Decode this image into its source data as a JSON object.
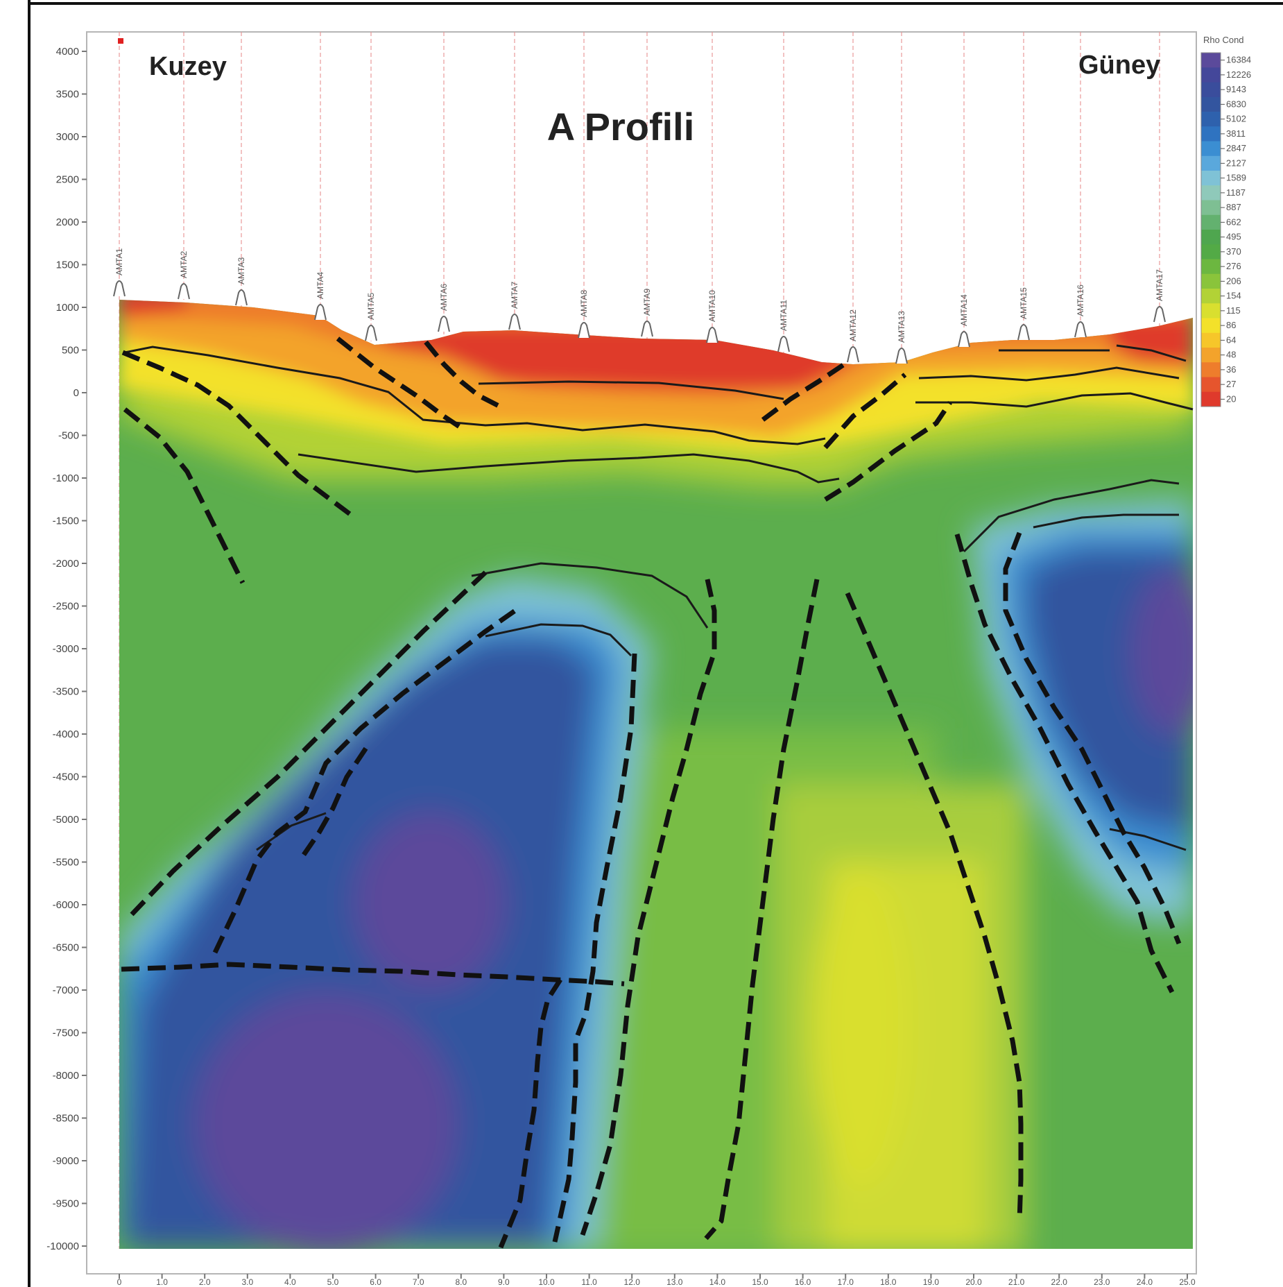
{
  "chart_data": {
    "type": "heatmap",
    "title": "A Profili",
    "annotations": {
      "left": "Kuzey",
      "right": "Güney"
    },
    "y_ticks": [
      "4000",
      "3500",
      "3000",
      "2500",
      "2000",
      "1500",
      "1000",
      "500",
      "0",
      "-500",
      "-1000",
      "-1500",
      "-2000",
      "-2500",
      "-3000",
      "-3500",
      "-4000",
      "-4500",
      "-5000",
      "-5500",
      "-6000",
      "-6500",
      "-7000",
      "-7500",
      "-8000",
      "-8500",
      "-9000",
      "-9500",
      "-10000"
    ],
    "ylim": [
      -10000,
      4000
    ],
    "x_ticks": [
      "0",
      "1.0",
      "2.0",
      "3.0",
      "4.0",
      "5.0",
      "6.0",
      "7.0",
      "8.0",
      "9.0",
      "10.0",
      "11.0",
      "12.0",
      "13.0",
      "14.0",
      "15.0",
      "16.0",
      "17.0",
      "18.0",
      "19.0",
      "20.0",
      "21.0",
      "22.0",
      "23.0",
      "24.0",
      "25.0"
    ],
    "stations": [
      "AMTA1",
      "AMTA2",
      "AMTA3",
      "AMTA4",
      "AMTA5",
      "AMTA6",
      "AMTA7",
      "AMTA8",
      "AMTA9",
      "AMTA10",
      "AMTA11",
      "AMTA12",
      "AMTA13",
      "AMTA14",
      "AMTA15",
      "AMTA16",
      "AMTA17"
    ],
    "legend": {
      "title": "Rho Cond",
      "values": [
        "16384",
        "12226",
        "9143",
        "6830",
        "5102",
        "3811",
        "2847",
        "2127",
        "1589",
        "1187",
        "887",
        "662",
        "495",
        "370",
        "276",
        "206",
        "154",
        "115",
        "86",
        "64",
        "48",
        "36",
        "27",
        "20"
      ],
      "colors": [
        "#5b4a9b",
        "#44479a",
        "#3a4d9c",
        "#33559f",
        "#2e61ad",
        "#2f73c0",
        "#3b8ed2",
        "#5aa8dc",
        "#7fc2d6",
        "#8fc9ba",
        "#7ebf93",
        "#63b16f",
        "#4fa64f",
        "#53aa46",
        "#6cb740",
        "#8ac43b",
        "#b2d236",
        "#d9df2f",
        "#f3e12a",
        "#f6c62a",
        "#f3a32b",
        "#ee7d2c",
        "#e6552d",
        "#df3a2c"
      ]
    }
  }
}
